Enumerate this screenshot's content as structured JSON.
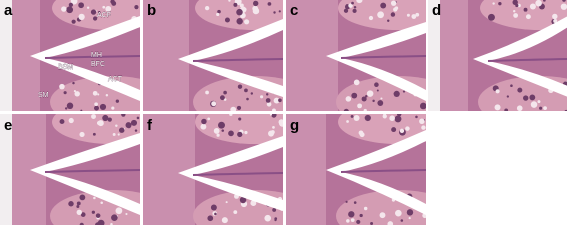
{
  "panels": [
    {
      "label": "a",
      "annotations": [
        "ACF",
        "MH",
        "BFC",
        "BSM",
        "ACT",
        "SM"
      ]
    },
    {
      "label": "b"
    },
    {
      "label": "c"
    },
    {
      "label": "d"
    },
    {
      "label": "e"
    },
    {
      "label": "f"
    },
    {
      "label": "g"
    }
  ]
}
